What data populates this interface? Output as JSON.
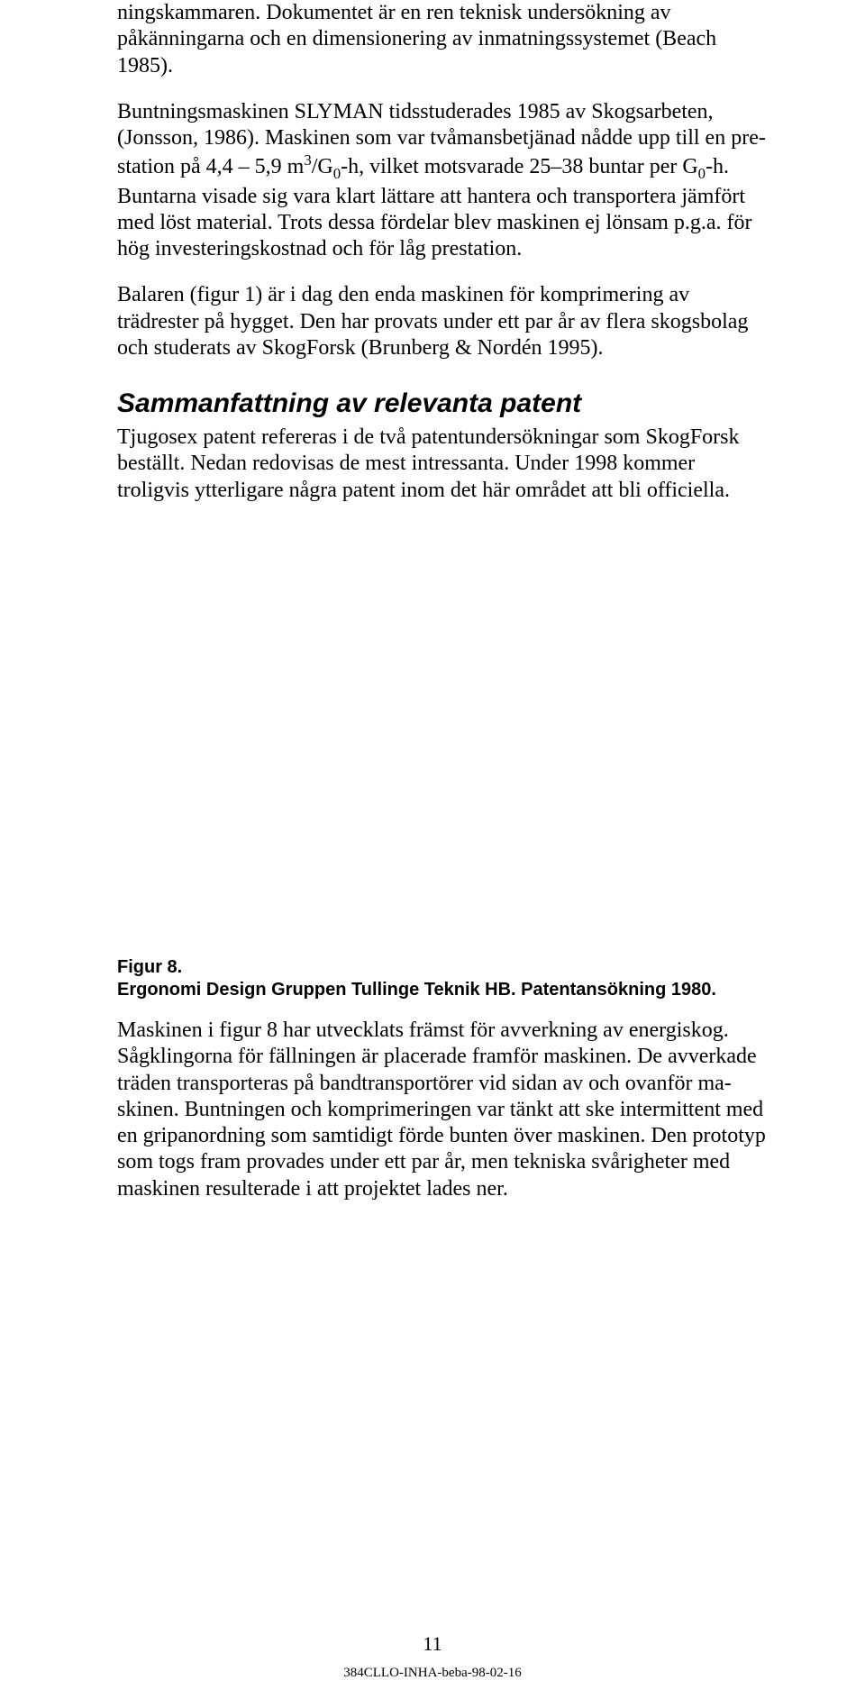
{
  "para1": "ningskammaren. Dokumentet är en ren teknisk undersökning av påkänning­arna och en dimensionering av inmatningssystemet (Beach 1985).",
  "para2_html": "Buntningsmaskinen SLYMAN tidsstuderades 1985 av Skogsarbeten, (Jonsson, 1986). Maskinen som var tvåmansbetjänad nådde upp till en pre­station på 4,4 – 5,9 m<sup>3</sup>/G<sub>0</sub>-h, vilket motsvarade 25–38 buntar per G<sub>0</sub>-h. Buntarna visade sig vara klart lättare att hantera och transportera jämfört med löst material. Trots dessa fördelar blev maskinen ej lönsam p.g.a. för hög investeringskostnad och för låg prestation.",
  "para3": "Balaren (figur 1) är i dag den enda maskinen för komprimering av trädrester på hygget. Den har provats under ett par år av flera skogsbolag och studerats av SkogForsk (Brunberg & Nordén 1995).",
  "heading": "Sammanfattning av relevanta patent",
  "para4": "Tjugosex patent refereras i de två patentundersökningar som SkogForsk beställt. Nedan redovisas de mest intressanta. Under 1998 kommer troligvis ytterligare några patent inom det här området att bli officiella.",
  "fig_line1": "Figur 8.",
  "fig_line2": "Ergonomi Design Gruppen Tullinge Teknik HB. Patentansökning 1980.",
  "para5": "Maskinen i figur 8 har utvecklats främst för avverkning av energiskog. Såg­klingorna för fällningen är placerade framför maskinen. De avverkade träden transporteras på bandtransportörer vid sidan av och ovanför ma­skinen. Buntningen och komprimeringen var tänkt att ske intermittent med en gripanordning som samtidigt förde bunten över maskinen. Den prototyp som togs fram provades under ett par år, men tekniska svårigheter med maskinen resulterade i att projektet lades ner.",
  "page_number": "11",
  "footer_code": "384CLLO-INHA-beba-98-02-16"
}
